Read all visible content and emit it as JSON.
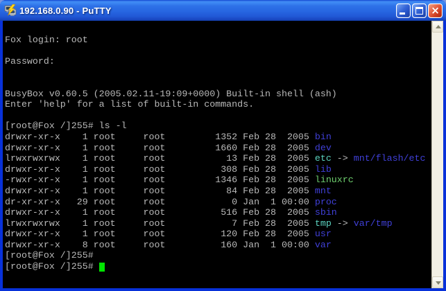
{
  "window": {
    "title": "192.168.0.90 - PuTTY",
    "icons": {
      "app": "putty-icon",
      "minimize": "minimize-icon",
      "maximize": "maximize-icon",
      "close": "close-icon",
      "scroll_up": "scroll-up-arrow-icon",
      "scroll_down": "scroll-down-arrow-icon"
    },
    "chrome_colors": {
      "border": "#0831d9",
      "close_button": "#d84327",
      "titlebar_text": "#ffffff"
    }
  },
  "terminal": {
    "colors": {
      "background": "#000000",
      "fg": "#b9b9b9",
      "dir": "#4040d8",
      "ln": "#5cd3c0",
      "ex": "#6ece6e",
      "cursor": "#00e400"
    },
    "lines": [
      "",
      "Fox login: root",
      "",
      "Password:",
      "",
      "",
      "BusyBox v0.60.5 (2005.02.11-19:09+0000) Built-in shell (ash)",
      "Enter 'help' for a list of built-in commands.",
      "",
      "[root@Fox /]255# ls -l",
      [
        {
          "t": "drwxr-xr-x    1 root     root         1352 Feb 28  2005 ",
          "c": "fg"
        },
        {
          "t": "bin",
          "c": "dir"
        }
      ],
      [
        {
          "t": "drwxr-xr-x    1 root     root         1660 Feb 28  2005 ",
          "c": "fg"
        },
        {
          "t": "dev",
          "c": "dir"
        }
      ],
      [
        {
          "t": "lrwxrwxrwx    1 root     root           13 Feb 28  2005 ",
          "c": "fg"
        },
        {
          "t": "etc",
          "c": "ln"
        },
        {
          "t": " -> ",
          "c": "fg"
        },
        {
          "t": "mnt/flash/etc",
          "c": "dir"
        }
      ],
      [
        {
          "t": "drwxr-xr-x    1 root     root          308 Feb 28  2005 ",
          "c": "fg"
        },
        {
          "t": "lib",
          "c": "dir"
        }
      ],
      [
        {
          "t": "-rwxr-xr-x    1 root     root         1346 Feb 28  2005 ",
          "c": "fg"
        },
        {
          "t": "linuxrc",
          "c": "ex"
        }
      ],
      [
        {
          "t": "drwxr-xr-x    1 root     root           84 Feb 28  2005 ",
          "c": "fg"
        },
        {
          "t": "mnt",
          "c": "dir"
        }
      ],
      [
        {
          "t": "dr-xr-xr-x   29 root     root            0 Jan  1 00:00 ",
          "c": "fg"
        },
        {
          "t": "proc",
          "c": "dir"
        }
      ],
      [
        {
          "t": "drwxr-xr-x    1 root     root          516 Feb 28  2005 ",
          "c": "fg"
        },
        {
          "t": "sbin",
          "c": "dir"
        }
      ],
      [
        {
          "t": "lrwxrwxrwx    1 root     root            7 Feb 28  2005 ",
          "c": "fg"
        },
        {
          "t": "tmp",
          "c": "ln"
        },
        {
          "t": " -> ",
          "c": "fg"
        },
        {
          "t": "var/tmp",
          "c": "dir"
        }
      ],
      [
        {
          "t": "drwxr-xr-x    1 root     root          120 Feb 28  2005 ",
          "c": "fg"
        },
        {
          "t": "usr",
          "c": "dir"
        }
      ],
      [
        {
          "t": "drwxr-xr-x    8 root     root          160 Jan  1 00:00 ",
          "c": "fg"
        },
        {
          "t": "var",
          "c": "dir"
        }
      ],
      "[root@Fox /]255#",
      [
        {
          "t": "[root@Fox /]255# ",
          "c": "fg"
        },
        {
          "cursor": true
        }
      ]
    ]
  }
}
